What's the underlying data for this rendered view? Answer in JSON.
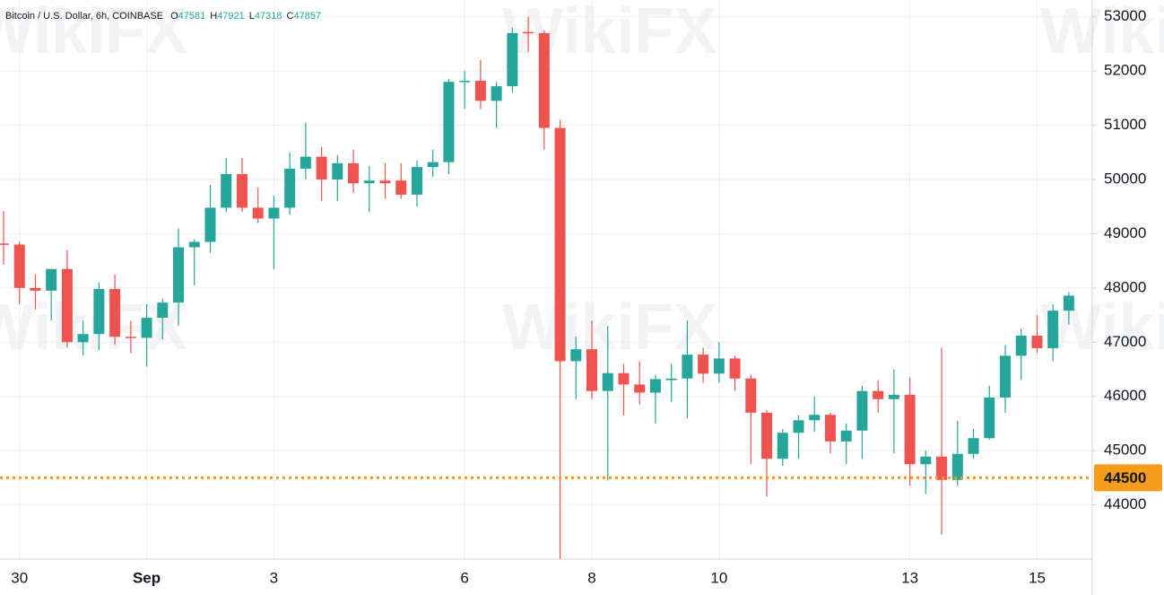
{
  "chart_data": {
    "type": "candlestick",
    "title": "Bitcoin / U.S. Dollar, 6h, COINBASE",
    "ohlc_labels": [
      "O",
      "H",
      "L",
      "C"
    ],
    "categories": [
      null,
      "30",
      null,
      null,
      null,
      null,
      null,
      null,
      null,
      "Sep",
      null,
      null,
      null,
      null,
      null,
      null,
      null,
      "3",
      null,
      null,
      null,
      null,
      null,
      null,
      null,
      null,
      null,
      null,
      null,
      "6",
      null,
      null,
      null,
      null,
      null,
      null,
      null,
      "8",
      null,
      null,
      null,
      null,
      null,
      null,
      null,
      "10",
      null,
      null,
      null,
      null,
      null,
      null,
      null,
      null,
      null,
      null,
      null,
      "13",
      null,
      null,
      null,
      null,
      null,
      null,
      null,
      "15",
      null,
      null
    ],
    "open": [
      48820,
      48800,
      48000,
      47950,
      48350,
      47000,
      47150,
      47980,
      47100,
      47080,
      47450,
      47730,
      48750,
      48850,
      49480,
      50100,
      49480,
      49280,
      49480,
      50200,
      50420,
      50000,
      50300,
      49930,
      49980,
      49980,
      49720,
      50230,
      50320,
      51800,
      51820,
      51450,
      51720,
      52720,
      52700,
      50950,
      46650,
      46870,
      46100,
      46430,
      46220,
      46070,
      46300,
      46330,
      46770,
      46420,
      46700,
      46330,
      45700,
      44850,
      45330,
      45560,
      45660,
      45170,
      45370,
      46100,
      45950,
      46030,
      44750,
      44890,
      44460,
      44940,
      45230,
      45980,
      46750,
      47120,
      46890,
      47581
    ],
    "high": [
      49420,
      48850,
      48250,
      48350,
      48700,
      47400,
      48100,
      48250,
      47400,
      47700,
      47800,
      49100,
      48900,
      49900,
      50400,
      50400,
      49850,
      49700,
      50500,
      51050,
      50600,
      50450,
      50550,
      50250,
      50300,
      50300,
      50350,
      50550,
      51850,
      52000,
      52200,
      51800,
      52800,
      53000,
      52750,
      51100,
      47100,
      47400,
      47300,
      46600,
      46650,
      46400,
      46600,
      47400,
      46900,
      47000,
      46750,
      46400,
      45750,
      45400,
      45650,
      46000,
      45700,
      45500,
      46200,
      46300,
      46500,
      46350,
      45000,
      46900,
      45550,
      45400,
      46200,
      46950,
      47250,
      47500,
      47700,
      47921
    ],
    "low": [
      48430,
      47700,
      47600,
      47400,
      46900,
      46750,
      46850,
      46950,
      46800,
      46550,
      47050,
      47300,
      48050,
      48650,
      49400,
      49400,
      49200,
      48350,
      49350,
      50000,
      49600,
      49600,
      49750,
      49400,
      49650,
      49650,
      49500,
      50050,
      50100,
      51300,
      51300,
      50950,
      51600,
      52350,
      50550,
      43000,
      45950,
      45950,
      44450,
      45650,
      45850,
      45500,
      45900,
      45600,
      46250,
      46250,
      46100,
      44750,
      44150,
      44720,
      44850,
      45350,
      44950,
      44750,
      44850,
      45700,
      44950,
      44350,
      44200,
      43450,
      44350,
      44850,
      45200,
      45700,
      46300,
      46800,
      46650,
      47318
    ],
    "close": [
      48800,
      48000,
      47950,
      48350,
      47000,
      47150,
      47980,
      47100,
      47080,
      47450,
      47730,
      48750,
      48850,
      49480,
      50100,
      49480,
      49280,
      49480,
      50200,
      50420,
      50000,
      50300,
      49930,
      49980,
      49930,
      49720,
      50230,
      50320,
      51800,
      51820,
      51450,
      51720,
      52700,
      52700,
      50950,
      46650,
      46870,
      46100,
      46430,
      46220,
      46070,
      46320,
      46330,
      46770,
      46420,
      46700,
      46330,
      45700,
      44850,
      45330,
      45560,
      45660,
      45170,
      45370,
      46100,
      45950,
      46030,
      44750,
      44890,
      44460,
      44940,
      45230,
      45980,
      46750,
      47120,
      46890,
      47581,
      47857
    ],
    "up_color": "#26a69a",
    "down_color": "#ef5350",
    "ylim": [
      43000,
      53310
    ],
    "yticks": [
      44000,
      45000,
      46000,
      47000,
      48000,
      49000,
      50000,
      51000,
      52000,
      53000
    ],
    "grid": true,
    "price_line": {
      "value": 44500,
      "color": "#f59c1a"
    },
    "watermark": "WikiFX"
  }
}
